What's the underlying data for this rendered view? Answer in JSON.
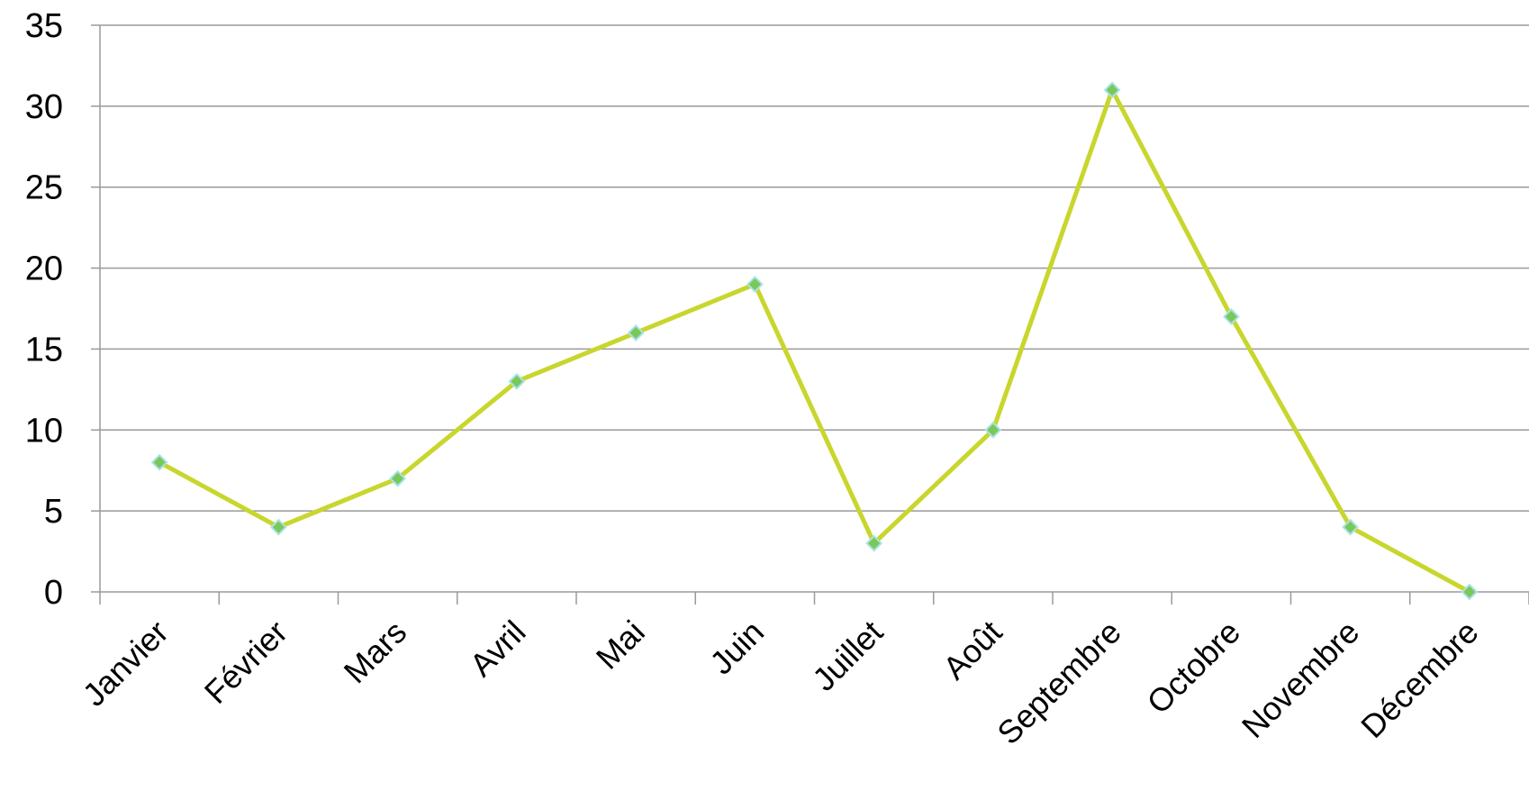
{
  "chart_data": {
    "type": "line",
    "categories": [
      "Janvier",
      "Février",
      "Mars",
      "Avril",
      "Mai",
      "Juin",
      "Juillet",
      "Août",
      "Septembre",
      "Octobre",
      "Novembre",
      "Décembre"
    ],
    "series": [
      {
        "values": [
          8,
          4,
          7,
          13,
          16,
          19,
          3,
          10,
          31,
          17,
          4,
          0
        ]
      }
    ],
    "ylim": [
      0,
      35
    ],
    "yticks": [
      0,
      5,
      10,
      15,
      20,
      25,
      30,
      35
    ],
    "grid": true,
    "title": "",
    "xlabel": "",
    "ylabel": "",
    "colors": {
      "line": "#c8d62d",
      "marker_fill": "#7ac85a",
      "marker_edge": "#a9e3e8",
      "grid": "#9a9a9a",
      "axis": "#9a9a9a"
    }
  }
}
